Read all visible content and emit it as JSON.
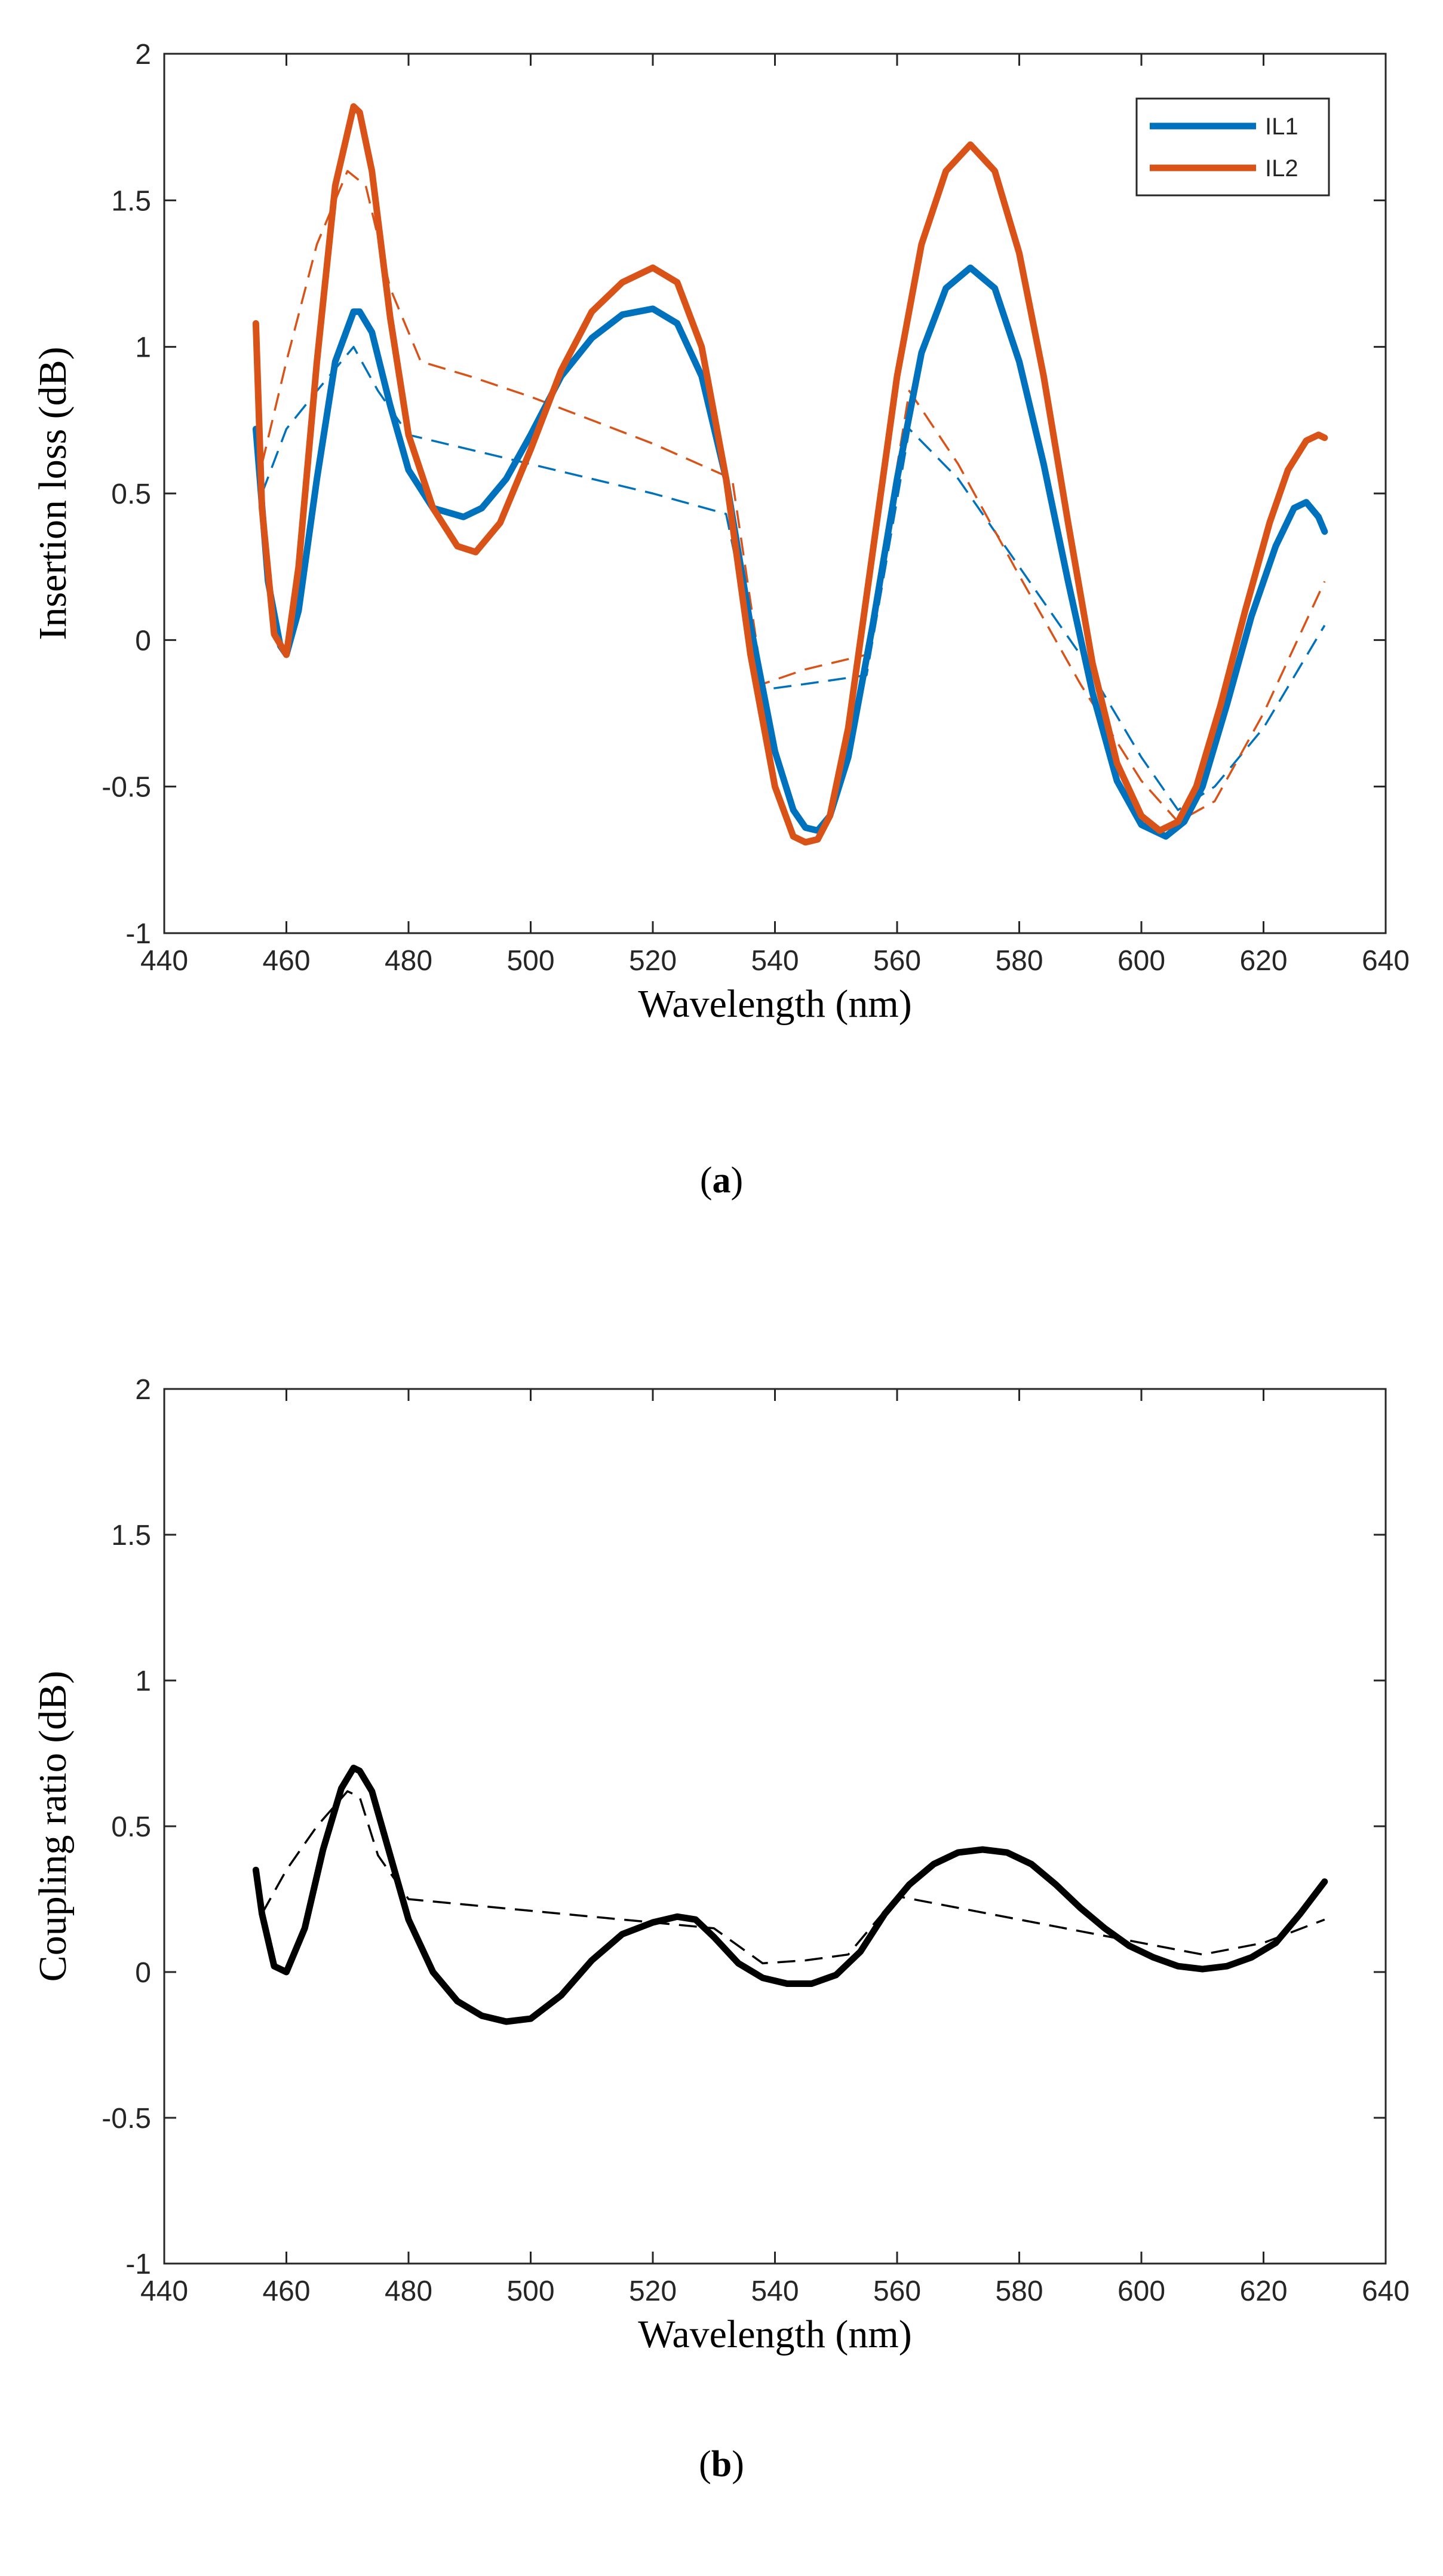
{
  "chart_data": [
    {
      "id": "a",
      "type": "line",
      "caption_letter": "a",
      "xlabel": "Wavelength (nm)",
      "ylabel": "Insertion loss (dB)",
      "xlim": [
        440,
        640
      ],
      "ylim": [
        -1,
        2
      ],
      "xticks": [
        440,
        460,
        480,
        500,
        520,
        540,
        560,
        580,
        600,
        620,
        640
      ],
      "yticks": [
        -1,
        -0.5,
        0,
        0.5,
        1,
        1.5,
        2
      ],
      "legend_position": "top-right",
      "series": [
        {
          "name": "IL1",
          "color": "#0072BD",
          "style": "solid",
          "in_legend": true,
          "x": [
            455,
            457,
            459,
            460,
            462,
            465,
            468,
            471,
            472,
            474,
            477,
            480,
            484,
            489,
            492,
            496,
            500,
            505,
            510,
            515,
            520,
            524,
            528,
            532,
            536,
            540,
            543,
            545,
            547,
            549,
            552,
            556,
            560,
            564,
            568,
            572,
            576,
            580,
            584,
            588,
            592,
            596,
            600,
            604,
            607,
            610,
            614,
            618,
            622,
            625,
            627,
            629,
            630
          ],
          "y": [
            0.72,
            0.2,
            -0.02,
            -0.05,
            0.1,
            0.55,
            0.95,
            1.12,
            1.12,
            1.05,
            0.8,
            0.58,
            0.45,
            0.42,
            0.45,
            0.55,
            0.7,
            0.9,
            1.03,
            1.11,
            1.13,
            1.08,
            0.9,
            0.55,
            0.05,
            -0.38,
            -0.58,
            -0.64,
            -0.65,
            -0.6,
            -0.4,
            0.05,
            0.55,
            0.98,
            1.2,
            1.27,
            1.2,
            0.95,
            0.6,
            0.2,
            -0.18,
            -0.48,
            -0.63,
            -0.67,
            -0.62,
            -0.5,
            -0.22,
            0.08,
            0.32,
            0.45,
            0.47,
            0.42,
            0.37
          ]
        },
        {
          "name": "IL2",
          "color": "#D95319",
          "style": "solid",
          "in_legend": true,
          "x": [
            455,
            456,
            458,
            460,
            462,
            465,
            468,
            471,
            472,
            474,
            477,
            480,
            484,
            488,
            491,
            495,
            500,
            505,
            510,
            515,
            520,
            524,
            528,
            532,
            536,
            540,
            543,
            545,
            547,
            549,
            552,
            556,
            560,
            564,
            568,
            572,
            576,
            580,
            584,
            588,
            592,
            596,
            600,
            603,
            606,
            609,
            613,
            617,
            621,
            624,
            627,
            629,
            630
          ],
          "y": [
            1.08,
            0.45,
            0.02,
            -0.05,
            0.25,
            0.95,
            1.55,
            1.82,
            1.8,
            1.6,
            1.1,
            0.7,
            0.45,
            0.32,
            0.3,
            0.4,
            0.65,
            0.92,
            1.12,
            1.22,
            1.27,
            1.22,
            1.0,
            0.55,
            -0.05,
            -0.5,
            -0.67,
            -0.69,
            -0.68,
            -0.6,
            -0.3,
            0.3,
            0.9,
            1.35,
            1.6,
            1.69,
            1.6,
            1.32,
            0.9,
            0.4,
            -0.08,
            -0.42,
            -0.6,
            -0.65,
            -0.62,
            -0.5,
            -0.22,
            0.1,
            0.4,
            0.58,
            0.68,
            0.7,
            0.69
          ]
        },
        {
          "name": "IL1 fit",
          "color": "#0072BD",
          "style": "dashed",
          "in_legend": false,
          "x": [
            456,
            460,
            465,
            471,
            475,
            480,
            490,
            500,
            510,
            520,
            532,
            538,
            545,
            555,
            562,
            570,
            580,
            590,
            600,
            606,
            612,
            620,
            630
          ],
          "y": [
            0.5,
            0.72,
            0.85,
            1.0,
            0.85,
            0.7,
            0.65,
            0.6,
            0.55,
            0.5,
            0.43,
            -0.17,
            -0.15,
            -0.12,
            0.72,
            0.55,
            0.25,
            -0.05,
            -0.4,
            -0.58,
            -0.5,
            -0.3,
            0.05
          ]
        },
        {
          "name": "IL2 fit",
          "color": "#D95319",
          "style": "dashed",
          "in_legend": false,
          "x": [
            456,
            460,
            465,
            470,
            473,
            477,
            482,
            490,
            500,
            510,
            520,
            533,
            538,
            545,
            555,
            562,
            570,
            580,
            590,
            600,
            606,
            612,
            620,
            630
          ],
          "y": [
            0.6,
            0.95,
            1.35,
            1.6,
            1.55,
            1.2,
            0.95,
            0.9,
            0.83,
            0.75,
            0.67,
            0.55,
            -0.15,
            -0.1,
            -0.05,
            0.85,
            0.6,
            0.22,
            -0.15,
            -0.48,
            -0.62,
            -0.55,
            -0.25,
            0.2
          ]
        }
      ]
    },
    {
      "id": "b",
      "type": "line",
      "caption_letter": "b",
      "xlabel": "Wavelength (nm)",
      "ylabel": "Coupling ratio (dB)",
      "xlim": [
        440,
        640
      ],
      "ylim": [
        -1,
        2
      ],
      "xticks": [
        440,
        460,
        480,
        500,
        520,
        540,
        560,
        580,
        600,
        620,
        640
      ],
      "yticks": [
        -1,
        -0.5,
        0,
        0.5,
        1,
        1.5,
        2
      ],
      "series": [
        {
          "name": "Coupling ratio",
          "color": "#000000",
          "style": "solid",
          "in_legend": false,
          "x": [
            455,
            456,
            458,
            460,
            463,
            466,
            469,
            471,
            472,
            474,
            477,
            480,
            484,
            488,
            492,
            496,
            500,
            505,
            510,
            515,
            520,
            524,
            527,
            530,
            534,
            538,
            542,
            546,
            550,
            554,
            558,
            562,
            566,
            570,
            574,
            578,
            582,
            586,
            590,
            594,
            598,
            602,
            606,
            610,
            614,
            618,
            622,
            626,
            630
          ],
          "y": [
            0.35,
            0.2,
            0.02,
            0.0,
            0.15,
            0.42,
            0.63,
            0.7,
            0.69,
            0.62,
            0.4,
            0.18,
            0.0,
            -0.1,
            -0.15,
            -0.17,
            -0.16,
            -0.08,
            0.04,
            0.13,
            0.17,
            0.19,
            0.18,
            0.12,
            0.03,
            -0.02,
            -0.04,
            -0.04,
            -0.01,
            0.07,
            0.2,
            0.3,
            0.37,
            0.41,
            0.42,
            0.41,
            0.37,
            0.3,
            0.22,
            0.15,
            0.09,
            0.05,
            0.02,
            0.01,
            0.02,
            0.05,
            0.1,
            0.2,
            0.31
          ]
        },
        {
          "name": "Coupling ratio fit",
          "color": "#000000",
          "style": "dashed",
          "in_legend": false,
          "x": [
            456,
            460,
            465,
            470,
            472,
            475,
            480,
            490,
            500,
            510,
            520,
            530,
            538,
            545,
            552,
            560,
            570,
            580,
            590,
            600,
            610,
            620,
            630
          ],
          "y": [
            0.2,
            0.35,
            0.5,
            0.62,
            0.6,
            0.4,
            0.25,
            0.23,
            0.21,
            0.19,
            0.17,
            0.15,
            0.03,
            0.04,
            0.06,
            0.26,
            0.22,
            0.18,
            0.14,
            0.1,
            0.06,
            0.1,
            0.18
          ]
        }
      ]
    }
  ]
}
